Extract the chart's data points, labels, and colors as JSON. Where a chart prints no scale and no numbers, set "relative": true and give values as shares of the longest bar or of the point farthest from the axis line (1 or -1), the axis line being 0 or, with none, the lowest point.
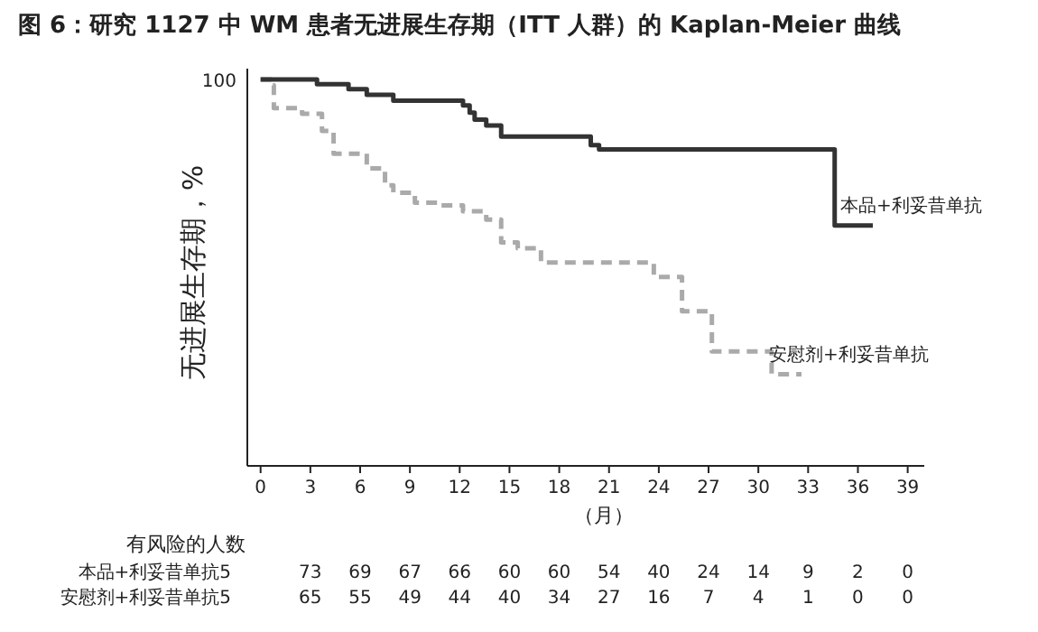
{
  "chart_data": {
    "type": "step",
    "title": "图 6：研究 1127 中 WM 患者无进展生存期（ITT 人群）的 Kaplan-Meier 曲线",
    "ylabel": "无进展生存期，%",
    "xlabel": "（月）",
    "relative": true,
    "xlim": [
      -0.8,
      40
    ],
    "xticks": [
      0,
      3,
      6,
      9,
      12,
      15,
      18,
      21,
      24,
      27,
      30,
      33,
      36,
      39
    ],
    "grid": false,
    "series": [
      {
        "name": "本品+利妥昔单抗",
        "color": "#333333",
        "line_style": "solid",
        "x": [
          0,
          3.4,
          5.3,
          6.4,
          8.0,
          12.2,
          12.6,
          12.9,
          13.6,
          14.5,
          19.9,
          20.4,
          34.6,
          36.9
        ],
        "values": [
          1.0,
          0.988,
          0.975,
          0.96,
          0.945,
          0.933,
          0.914,
          0.896,
          0.881,
          0.852,
          0.83,
          0.819,
          0.622,
          0.622
        ]
      },
      {
        "name": "安慰剂+利妥昔单抗",
        "color": "#aaaaaa",
        "line_style": "dashed",
        "x": [
          0,
          0.65,
          0.8,
          2.5,
          3.7,
          4.4,
          6.4,
          7.5,
          8.0,
          9.3,
          10.7,
          12.2,
          13.6,
          14.5,
          15.5,
          16.9,
          23.7,
          25.4,
          27.2,
          30.8,
          32.6
        ],
        "values": [
          1.0,
          0.985,
          0.926,
          0.911,
          0.867,
          0.808,
          0.77,
          0.726,
          0.707,
          0.681,
          0.674,
          0.659,
          0.637,
          0.578,
          0.563,
          0.526,
          0.489,
          0.4,
          0.296,
          0.237,
          0.237
        ]
      }
    ],
    "annotations": [
      "100",
      "有风险的人数",
      "本品+利妥昔单抗5 73 69 67 66 60 60 54 40 24 14 9 2 0",
      "安慰剂+利妥昔单抗5 65 55 49 44 40 34 27 16 7 4 1 0 0"
    ]
  }
}
